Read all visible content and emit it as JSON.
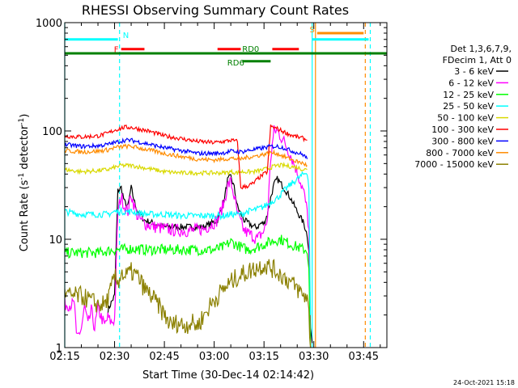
{
  "chart_data": {
    "type": "line",
    "title": "RHESSI Observing Summary Count Rates",
    "xlabel": "Start Time (30-Dec-14 02:14:42)",
    "ylabel_main": "Count Rate (s",
    "ylabel_sup1": "-1",
    "ylabel_mid": " detector",
    "ylabel_sup2": "-1",
    "ylabel_end": ")",
    "xlim_min": [
      0,
      97
    ],
    "ylim": [
      1,
      1000
    ],
    "log_y": true,
    "x_ticks": [
      {
        "min": 0,
        "label": "02:15"
      },
      {
        "min": 15,
        "label": "02:30"
      },
      {
        "min": 30,
        "label": "02:45"
      },
      {
        "min": 45,
        "label": "03:00"
      },
      {
        "min": 60,
        "label": "03:15"
      },
      {
        "min": 75,
        "label": "03:30"
      },
      {
        "min": 90,
        "label": "03:45"
      }
    ],
    "y_ticks": [
      {
        "value": 1,
        "label": "1"
      },
      {
        "value": 10,
        "label": "10"
      },
      {
        "value": 100,
        "label": "100"
      },
      {
        "value": 1000,
        "label": "1000"
      }
    ],
    "legend": {
      "placement": "right",
      "header1": "Det 1,3,6,7,9,",
      "header2": "FDecim 1, Att 0",
      "entries": [
        {
          "label": "3 - 6 keV",
          "color": "#000000"
        },
        {
          "label": "6 - 12 keV",
          "color": "#ff00ff"
        },
        {
          "label": "12 - 25 keV",
          "color": "#00ff00"
        },
        {
          "label": "25 - 50 keV",
          "color": "#00ffff"
        },
        {
          "label": "50 - 100 keV",
          "color": "#d9d900"
        },
        {
          "label": "100 - 300 keV",
          "color": "#ff0000"
        },
        {
          "label": "300 - 800 keV",
          "color": "#0000ff"
        },
        {
          "label": "800 - 7000 keV",
          "color": "#ff8c00"
        },
        {
          "label": "7000 - 15000 keV",
          "color": "#8b8000"
        }
      ]
    },
    "flags": [
      {
        "label": "N",
        "color": "#00ffff"
      },
      {
        "label": "F",
        "color": "#ff0000"
      },
      {
        "label": "RD0",
        "color": "#008000"
      },
      {
        "label": "RD6",
        "color": "#008000"
      },
      {
        "label": "S",
        "color": "#ff8c00"
      }
    ],
    "series": [
      {
        "name": "3 - 6 keV",
        "color": "#000000",
        "points": [
          [
            13,
            2.2
          ],
          [
            14,
            2.6
          ],
          [
            15,
            3
          ],
          [
            16,
            28
          ],
          [
            17,
            30
          ],
          [
            18,
            22
          ],
          [
            19,
            20
          ],
          [
            20,
            30
          ],
          [
            21,
            22
          ],
          [
            22,
            18
          ],
          [
            24,
            15
          ],
          [
            27,
            14
          ],
          [
            30,
            13
          ],
          [
            34,
            13
          ],
          [
            38,
            13
          ],
          [
            42,
            13
          ],
          [
            46,
            15
          ],
          [
            48,
            23
          ],
          [
            49,
            35
          ],
          [
            50,
            38
          ],
          [
            51,
            30
          ],
          [
            52,
            20
          ],
          [
            54,
            15
          ],
          [
            57,
            13
          ],
          [
            58,
            13
          ],
          [
            59,
            14
          ],
          [
            60,
            14
          ],
          [
            61,
            17
          ],
          [
            62,
            24
          ],
          [
            63,
            32
          ],
          [
            64,
            36
          ],
          [
            66,
            30
          ],
          [
            68,
            24
          ],
          [
            70,
            18
          ],
          [
            72,
            14
          ],
          [
            73,
            11
          ],
          [
            73.5,
            8
          ],
          [
            74,
            1.5
          ],
          [
            74.5,
            1.1
          ]
        ]
      },
      {
        "name": "6 - 12 keV",
        "color": "#ff00ff",
        "points": [
          [
            0,
            2.5
          ],
          [
            3,
            2.5
          ],
          [
            3.5,
            1.2
          ],
          [
            5,
            1.5
          ],
          [
            6,
            2.4
          ],
          [
            7,
            1.6
          ],
          [
            8,
            2.2
          ],
          [
            9,
            1.5
          ],
          [
            10,
            2.3
          ],
          [
            12,
            1.6
          ],
          [
            13,
            1.9
          ],
          [
            14,
            1.7
          ],
          [
            15,
            1.8
          ],
          [
            16,
            18
          ],
          [
            17,
            25
          ],
          [
            18,
            20
          ],
          [
            19,
            18
          ],
          [
            20,
            26
          ],
          [
            21,
            20
          ],
          [
            22,
            16
          ],
          [
            24,
            14
          ],
          [
            27,
            13
          ],
          [
            30,
            12.5
          ],
          [
            34,
            12
          ],
          [
            38,
            12
          ],
          [
            42,
            12.5
          ],
          [
            46,
            15
          ],
          [
            48,
            22
          ],
          [
            49,
            31
          ],
          [
            50,
            34
          ],
          [
            51,
            25
          ],
          [
            52,
            17
          ],
          [
            54,
            12
          ],
          [
            57,
            10.5
          ],
          [
            58,
            10
          ],
          [
            59,
            11
          ],
          [
            60,
            12
          ],
          [
            61,
            15
          ],
          [
            62,
            55
          ],
          [
            63,
            100
          ],
          [
            64,
            100
          ],
          [
            66,
            80
          ],
          [
            68,
            60
          ],
          [
            70,
            42
          ],
          [
            72,
            27
          ],
          [
            73,
            18
          ],
          [
            73.5,
            12
          ],
          [
            74,
            1
          ]
        ]
      },
      {
        "name": "12 - 25 keV",
        "color": "#00ff00",
        "points": [
          [
            0,
            7.5
          ],
          [
            5,
            7.5
          ],
          [
            10,
            7.5
          ],
          [
            13,
            7.8
          ],
          [
            15,
            8
          ],
          [
            17,
            8
          ],
          [
            20,
            8.2
          ],
          [
            25,
            8
          ],
          [
            30,
            8
          ],
          [
            35,
            8
          ],
          [
            40,
            8
          ],
          [
            45,
            8
          ],
          [
            48,
            8.5
          ],
          [
            50,
            9.5
          ],
          [
            53,
            8.5
          ],
          [
            55,
            8
          ],
          [
            58,
            8.5
          ],
          [
            60,
            9
          ],
          [
            62,
            9.5
          ],
          [
            65,
            10
          ],
          [
            68,
            9
          ],
          [
            70,
            8.5
          ],
          [
            72,
            8
          ],
          [
            73,
            8
          ],
          [
            73.5,
            5
          ],
          [
            74,
            1
          ]
        ]
      },
      {
        "name": "25 - 50 keV",
        "color": "#00ffff",
        "points": [
          [
            0,
            18
          ],
          [
            5,
            17
          ],
          [
            10,
            17
          ],
          [
            13,
            17
          ],
          [
            15,
            18
          ],
          [
            17,
            18
          ],
          [
            20,
            18
          ],
          [
            25,
            17
          ],
          [
            30,
            17
          ],
          [
            35,
            16.5
          ],
          [
            40,
            16.5
          ],
          [
            45,
            16.5
          ],
          [
            48,
            16.5
          ],
          [
            50,
            17
          ],
          [
            53,
            17
          ],
          [
            55,
            18
          ],
          [
            58,
            19
          ],
          [
            60,
            20
          ],
          [
            62,
            22
          ],
          [
            64,
            24
          ],
          [
            66,
            28
          ],
          [
            68,
            32
          ],
          [
            70,
            36
          ],
          [
            72,
            40
          ],
          [
            73,
            42
          ],
          [
            73.5,
            30
          ],
          [
            74,
            2
          ]
        ]
      },
      {
        "name": "50 - 100 keV",
        "color": "#d9d900",
        "points": [
          [
            0,
            44
          ],
          [
            5,
            42
          ],
          [
            10,
            43
          ],
          [
            13,
            44
          ],
          [
            15,
            46
          ],
          [
            17,
            48
          ],
          [
            20,
            48
          ],
          [
            25,
            45
          ],
          [
            30,
            42
          ],
          [
            35,
            41
          ],
          [
            40,
            41
          ],
          [
            45,
            41
          ],
          [
            48,
            41
          ],
          [
            50,
            42
          ],
          [
            52,
            41
          ],
          [
            53,
            42
          ],
          [
            55,
            42
          ],
          [
            57,
            42
          ],
          [
            60,
            44
          ],
          [
            62,
            46
          ],
          [
            64,
            48
          ],
          [
            66,
            48
          ],
          [
            68,
            47
          ],
          [
            70,
            46
          ],
          [
            72,
            44
          ],
          [
            73,
            44
          ]
        ]
      },
      {
        "name": "100 - 300 keV",
        "color": "#ff0000",
        "points": [
          [
            0,
            90
          ],
          [
            5,
            88
          ],
          [
            10,
            90
          ],
          [
            13,
            95
          ],
          [
            15,
            102
          ],
          [
            18,
            108
          ],
          [
            20,
            108
          ],
          [
            25,
            100
          ],
          [
            30,
            90
          ],
          [
            35,
            85
          ],
          [
            40,
            80
          ],
          [
            45,
            78
          ],
          [
            48,
            80
          ],
          [
            50,
            82
          ],
          [
            52,
            80
          ],
          [
            53,
            30
          ],
          [
            55,
            31
          ],
          [
            57,
            33
          ],
          [
            58,
            36
          ],
          [
            60,
            40
          ],
          [
            61,
            42
          ],
          [
            62,
            110
          ],
          [
            64,
            105
          ],
          [
            66,
            98
          ],
          [
            68,
            92
          ],
          [
            70,
            88
          ],
          [
            72,
            85
          ],
          [
            73,
            82
          ]
        ]
      },
      {
        "name": "300 - 800 keV",
        "color": "#0000ff",
        "points": [
          [
            0,
            75
          ],
          [
            5,
            72
          ],
          [
            10,
            73
          ],
          [
            13,
            75
          ],
          [
            15,
            78
          ],
          [
            18,
            82
          ],
          [
            20,
            82
          ],
          [
            25,
            76
          ],
          [
            30,
            70
          ],
          [
            35,
            66
          ],
          [
            40,
            62
          ],
          [
            45,
            62
          ],
          [
            48,
            63
          ],
          [
            50,
            65
          ],
          [
            53,
            64
          ],
          [
            55,
            66
          ],
          [
            58,
            68
          ],
          [
            60,
            70
          ],
          [
            62,
            72
          ],
          [
            64,
            72
          ],
          [
            66,
            70
          ],
          [
            68,
            66
          ],
          [
            70,
            63
          ],
          [
            72,
            60
          ],
          [
            73,
            55
          ]
        ]
      },
      {
        "name": "800 - 7000 keV",
        "color": "#ff8c00",
        "points": [
          [
            0,
            66
          ],
          [
            5,
            64
          ],
          [
            10,
            65
          ],
          [
            13,
            67
          ],
          [
            15,
            70
          ],
          [
            18,
            72
          ],
          [
            20,
            72
          ],
          [
            25,
            67
          ],
          [
            30,
            62
          ],
          [
            35,
            58
          ],
          [
            40,
            55
          ],
          [
            45,
            54
          ],
          [
            48,
            55
          ],
          [
            50,
            56
          ],
          [
            53,
            55
          ],
          [
            55,
            57
          ],
          [
            58,
            59
          ],
          [
            60,
            61
          ],
          [
            62,
            63
          ],
          [
            64,
            62
          ],
          [
            66,
            58
          ],
          [
            68,
            55
          ],
          [
            70,
            52
          ],
          [
            72,
            50
          ],
          [
            73,
            48
          ]
        ]
      },
      {
        "name": "7000 - 15000 keV",
        "color": "#8b8000",
        "points": [
          [
            0,
            3
          ],
          [
            5,
            3
          ],
          [
            10,
            2.5
          ],
          [
            12,
            2.5
          ],
          [
            13,
            2.8
          ],
          [
            14,
            3.5
          ],
          [
            15,
            4.5
          ],
          [
            16,
            4
          ],
          [
            17,
            5
          ],
          [
            18,
            4.5
          ],
          [
            20,
            5
          ],
          [
            22,
            4.5
          ],
          [
            24,
            3.5
          ],
          [
            26,
            3
          ],
          [
            28,
            2.5
          ],
          [
            30,
            2
          ],
          [
            32,
            1.6
          ],
          [
            34,
            1.7
          ],
          [
            36,
            1.6
          ],
          [
            38,
            1.7
          ],
          [
            40,
            1.6
          ],
          [
            42,
            2
          ],
          [
            44,
            2.5
          ],
          [
            46,
            3
          ],
          [
            48,
            3.5
          ],
          [
            50,
            4
          ],
          [
            52,
            4.5
          ],
          [
            55,
            5
          ],
          [
            58,
            5.5
          ],
          [
            60,
            5.8
          ],
          [
            62,
            5.5
          ],
          [
            64,
            5
          ],
          [
            66,
            4.5
          ],
          [
            68,
            4
          ],
          [
            70,
            3.5
          ],
          [
            72,
            3
          ],
          [
            73,
            3
          ],
          [
            73.5,
            2
          ],
          [
            74,
            1
          ]
        ]
      }
    ]
  },
  "footer": {
    "timestamp": "24-Oct-2021 15:18"
  }
}
